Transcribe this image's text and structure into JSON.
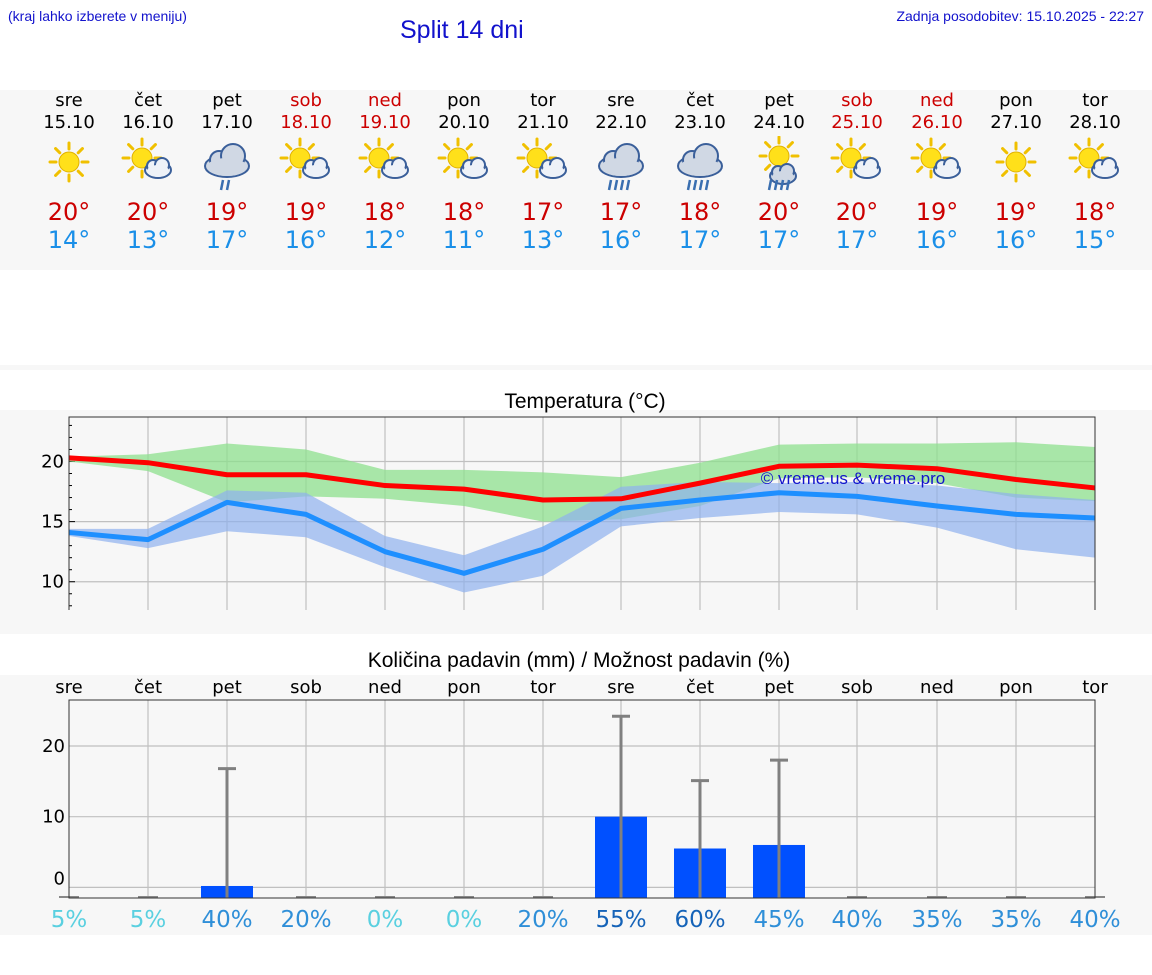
{
  "header": {
    "left_note": "(kraj lahko izberete v meniju)",
    "title": "Split 14 dni",
    "updated": "Zadnja posodobitev: 15.10.2025 - 22:27"
  },
  "days": [
    {
      "name": "sre",
      "date": "15.10",
      "weekend": false,
      "icon": "sun-icon",
      "tmax": "20°",
      "tmin": "14°"
    },
    {
      "name": "čet",
      "date": "16.10",
      "weekend": false,
      "icon": "sun-cloud-icon",
      "tmax": "20°",
      "tmin": "13°"
    },
    {
      "name": "pet",
      "date": "17.10",
      "weekend": false,
      "icon": "cloud-rain-icon",
      "tmax": "19°",
      "tmin": "17°"
    },
    {
      "name": "sob",
      "date": "18.10",
      "weekend": true,
      "icon": "sun-cloud-icon",
      "tmax": "19°",
      "tmin": "16°"
    },
    {
      "name": "ned",
      "date": "19.10",
      "weekend": true,
      "icon": "sun-cloud-icon",
      "tmax": "18°",
      "tmin": "12°"
    },
    {
      "name": "pon",
      "date": "20.10",
      "weekend": false,
      "icon": "sun-cloud-icon",
      "tmax": "18°",
      "tmin": "11°"
    },
    {
      "name": "tor",
      "date": "21.10",
      "weekend": false,
      "icon": "sun-cloud-icon",
      "tmax": "17°",
      "tmin": "13°"
    },
    {
      "name": "sre",
      "date": "22.10",
      "weekend": false,
      "icon": "cloud-heavy-rain-icon",
      "tmax": "17°",
      "tmin": "16°"
    },
    {
      "name": "čet",
      "date": "23.10",
      "weekend": false,
      "icon": "cloud-heavy-rain-icon",
      "tmax": "18°",
      "tmin": "17°"
    },
    {
      "name": "pet",
      "date": "24.10",
      "weekend": false,
      "icon": "sun-cloud-rain-icon",
      "tmax": "20°",
      "tmin": "17°"
    },
    {
      "name": "sob",
      "date": "25.10",
      "weekend": true,
      "icon": "sun-cloud-icon",
      "tmax": "20°",
      "tmin": "17°"
    },
    {
      "name": "ned",
      "date": "26.10",
      "weekend": true,
      "icon": "sun-cloud-icon",
      "tmax": "19°",
      "tmin": "16°"
    },
    {
      "name": "pon",
      "date": "27.10",
      "weekend": false,
      "icon": "sun-icon",
      "tmax": "19°",
      "tmin": "16°"
    },
    {
      "name": "tor",
      "date": "28.10",
      "weekend": false,
      "icon": "sun-cloud-icon",
      "tmax": "18°",
      "tmin": "15°"
    }
  ],
  "colors": {
    "weekend": "#cc0000",
    "tmax_line": "#ff0000",
    "tmin_line": "#1e8fff",
    "tmax_band": "#8ee08e",
    "tmin_band": "#8fb0ee",
    "bar": "#0050ff",
    "whisker": "#808080"
  },
  "chart_data": [
    {
      "type": "line",
      "title": "Temperatura (°C)",
      "watermark": "© vreme.us & vreme.pro",
      "x": [
        "sre",
        "čet",
        "pet",
        "sob",
        "ned",
        "pon",
        "tor",
        "sre",
        "čet",
        "pet",
        "sob",
        "ned",
        "pon",
        "tor"
      ],
      "series": [
        {
          "values": [
            20.3,
            19.9,
            18.9,
            18.9,
            18.0,
            17.7,
            16.8,
            16.9,
            18.2,
            19.6,
            19.7,
            19.4,
            18.5,
            17.8
          ],
          "band_low": [
            20.0,
            19.2,
            16.6,
            17.1,
            16.9,
            16.3,
            15.0,
            15.2,
            16.3,
            18.6,
            18.7,
            18.2,
            17.0,
            16.7
          ],
          "band_high": [
            20.4,
            20.6,
            21.5,
            21.0,
            19.3,
            19.3,
            19.1,
            18.7,
            19.9,
            21.4,
            21.5,
            21.5,
            21.6,
            21.2
          ]
        },
        {
          "values": [
            14.1,
            13.5,
            16.6,
            15.6,
            12.5,
            10.7,
            12.7,
            16.1,
            16.8,
            17.4,
            17.1,
            16.3,
            15.6,
            15.3
          ],
          "band_low": [
            13.8,
            12.8,
            14.2,
            13.7,
            11.2,
            9.1,
            10.5,
            14.6,
            15.3,
            15.8,
            15.6,
            14.5,
            12.7,
            12.0
          ],
          "band_high": [
            14.4,
            14.4,
            17.6,
            17.4,
            13.8,
            12.2,
            14.6,
            17.9,
            18.3,
            18.2,
            18.3,
            18.0,
            17.3,
            16.8
          ]
        }
      ],
      "y_ticks": [
        10,
        15,
        20
      ],
      "ylim": [
        7.4,
        23.7
      ],
      "grid": true
    },
    {
      "type": "bar",
      "title": "Količina padavin (mm) / Možnost padavin (%)",
      "categories": [
        "sre",
        "čet",
        "pet",
        "sob",
        "ned",
        "pon",
        "tor",
        "sre",
        "čet",
        "pet",
        "sob",
        "ned",
        "pon",
        "tor"
      ],
      "values": [
        0,
        0,
        0.2,
        0,
        0,
        0,
        0,
        10,
        5.5,
        6,
        0,
        0,
        0,
        0
      ],
      "error_high": [
        0,
        0,
        16.8,
        0,
        0,
        0,
        0,
        24.2,
        15.1,
        18.0,
        0,
        0,
        0,
        0
      ],
      "probability": [
        "5%",
        "5%",
        "40%",
        "20%",
        "0%",
        "0%",
        "20%",
        "55%",
        "60%",
        "45%",
        "40%",
        "35%",
        "35%",
        "40%"
      ],
      "probability_colors": [
        "#5ad0e0",
        "#5ad0e0",
        "#2f8fd8",
        "#2f8fd8",
        "#5ad0e0",
        "#5ad0e0",
        "#2f8fd8",
        "#1563b8",
        "#1563b8",
        "#2f8fd8",
        "#2f8fd8",
        "#2f8fd8",
        "#2f8fd8",
        "#2f8fd8"
      ],
      "y_ticks": [
        0,
        10,
        20
      ],
      "ylim": [
        -1.5,
        26.5
      ],
      "grid": true
    }
  ]
}
